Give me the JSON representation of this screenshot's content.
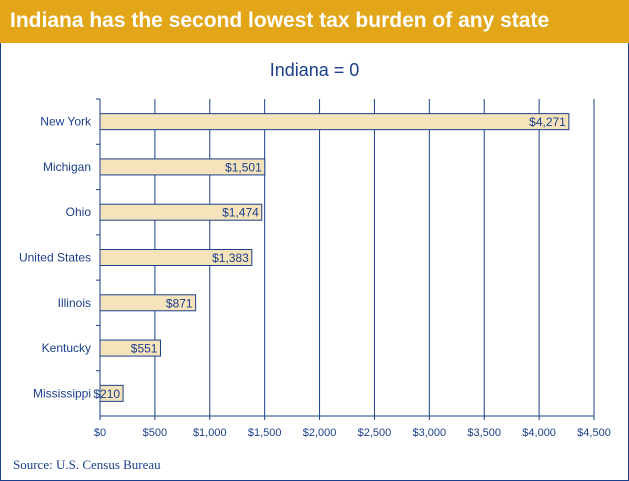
{
  "header": {
    "title": "Indiana has the second lowest tax burden of any state"
  },
  "source": "Source: U.S. Census Bureau",
  "colors": {
    "banner": "#e3a619",
    "bar_fill": "#f4e3bb",
    "ink": "#1b3f8b"
  },
  "chart_data": {
    "type": "bar",
    "orientation": "horizontal",
    "title": "Indiana = 0",
    "categories": [
      "New York",
      "Michigan",
      "Ohio",
      "United States",
      "Illinois",
      "Kentucky",
      "Mississippi"
    ],
    "values": [
      4271,
      1501,
      1474,
      1383,
      871,
      551,
      210
    ],
    "data_labels": [
      "$4,271",
      "$1,501",
      "$1,474",
      "$1,383",
      "$871",
      "$551",
      "$210"
    ],
    "xticks": [
      0,
      500,
      1000,
      1500,
      2000,
      2500,
      3000,
      3500,
      4000,
      4500
    ],
    "xtick_labels": [
      "$0",
      "$500",
      "$1,000",
      "$1,500",
      "$2,000",
      "$2,500",
      "$3,000",
      "$3,500",
      "$4,000",
      "$4,500"
    ],
    "xlim": [
      0,
      4500
    ],
    "grid": true,
    "legend": "none"
  }
}
